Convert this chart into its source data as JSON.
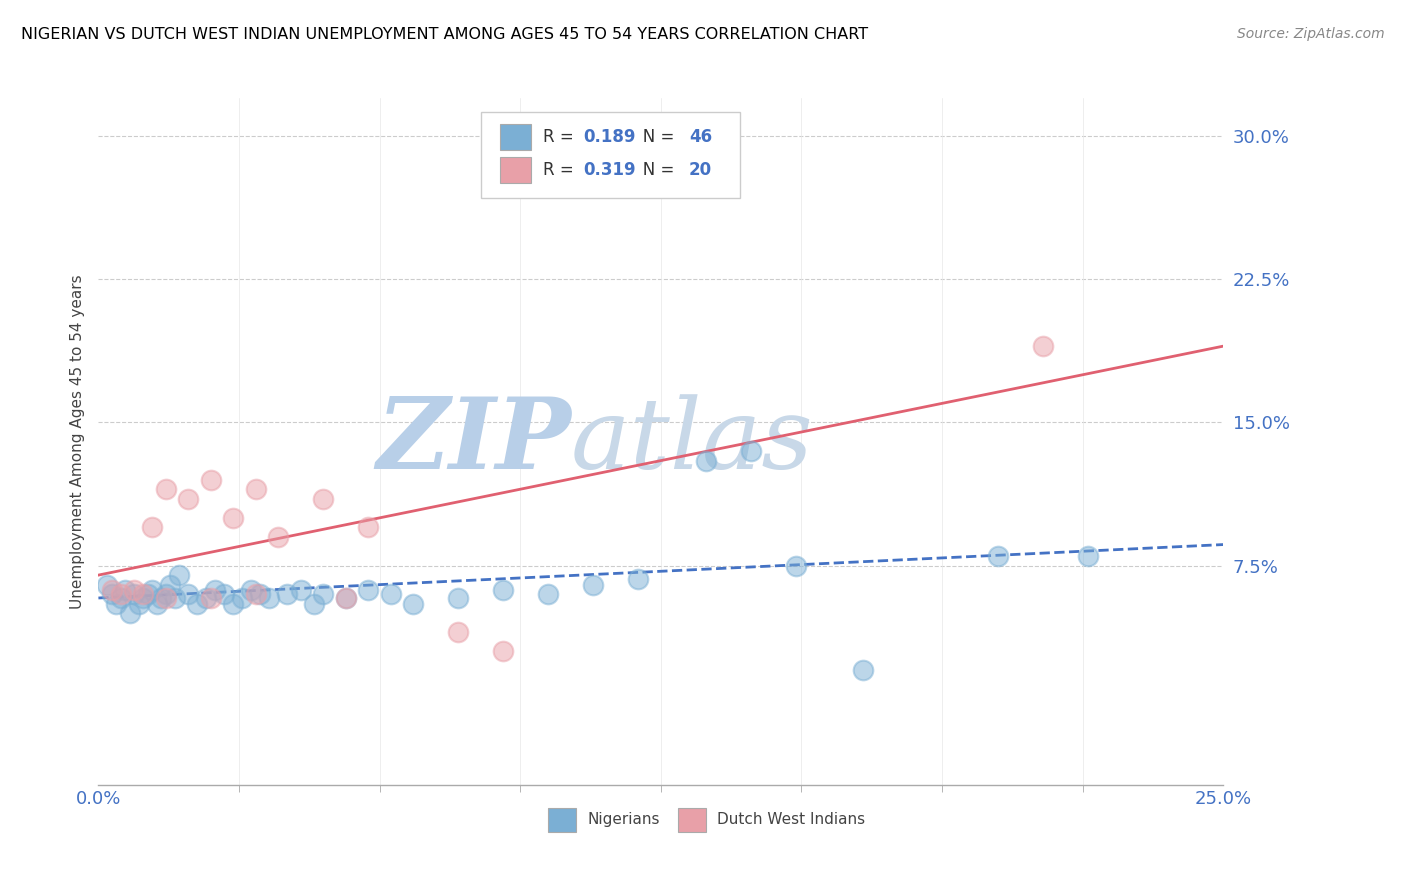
{
  "title": "NIGERIAN VS DUTCH WEST INDIAN UNEMPLOYMENT AMONG AGES 45 TO 54 YEARS CORRELATION CHART",
  "source": "Source: ZipAtlas.com",
  "ylabel": "Unemployment Among Ages 45 to 54 years",
  "xlim": [
    0.0,
    0.25
  ],
  "ylim": [
    -0.04,
    0.32
  ],
  "xticks": [
    0.0,
    0.25
  ],
  "xticklabels": [
    "0.0%",
    "25.0%"
  ],
  "yticks": [
    0.075,
    0.15,
    0.225,
    0.3
  ],
  "yticklabels": [
    "7.5%",
    "15.0%",
    "22.5%",
    "30.0%"
  ],
  "grid_color": "#cccccc",
  "nigerian_color": "#7bafd4",
  "dutch_color": "#e8a0a8",
  "nigerian_R": 0.189,
  "nigerian_N": 46,
  "dutch_R": 0.319,
  "dutch_N": 20,
  "nigerian_scatter": [
    [
      0.002,
      0.065
    ],
    [
      0.003,
      0.06
    ],
    [
      0.004,
      0.055
    ],
    [
      0.005,
      0.058
    ],
    [
      0.006,
      0.062
    ],
    [
      0.007,
      0.05
    ],
    [
      0.008,
      0.06
    ],
    [
      0.009,
      0.055
    ],
    [
      0.01,
      0.058
    ],
    [
      0.011,
      0.06
    ],
    [
      0.012,
      0.062
    ],
    [
      0.013,
      0.055
    ],
    [
      0.014,
      0.058
    ],
    [
      0.015,
      0.06
    ],
    [
      0.016,
      0.065
    ],
    [
      0.017,
      0.058
    ],
    [
      0.018,
      0.07
    ],
    [
      0.02,
      0.06
    ],
    [
      0.022,
      0.055
    ],
    [
      0.024,
      0.058
    ],
    [
      0.026,
      0.062
    ],
    [
      0.028,
      0.06
    ],
    [
      0.03,
      0.055
    ],
    [
      0.032,
      0.058
    ],
    [
      0.034,
      0.062
    ],
    [
      0.036,
      0.06
    ],
    [
      0.038,
      0.058
    ],
    [
      0.042,
      0.06
    ],
    [
      0.045,
      0.062
    ],
    [
      0.048,
      0.055
    ],
    [
      0.05,
      0.06
    ],
    [
      0.055,
      0.058
    ],
    [
      0.06,
      0.062
    ],
    [
      0.065,
      0.06
    ],
    [
      0.07,
      0.055
    ],
    [
      0.08,
      0.058
    ],
    [
      0.09,
      0.062
    ],
    [
      0.1,
      0.06
    ],
    [
      0.11,
      0.065
    ],
    [
      0.12,
      0.068
    ],
    [
      0.135,
      0.13
    ],
    [
      0.145,
      0.135
    ],
    [
      0.155,
      0.075
    ],
    [
      0.17,
      0.02
    ],
    [
      0.2,
      0.08
    ],
    [
      0.22,
      0.08
    ]
  ],
  "dutch_scatter": [
    [
      0.003,
      0.062
    ],
    [
      0.005,
      0.06
    ],
    [
      0.008,
      0.062
    ],
    [
      0.01,
      0.06
    ],
    [
      0.012,
      0.095
    ],
    [
      0.015,
      0.115
    ],
    [
      0.02,
      0.11
    ],
    [
      0.025,
      0.12
    ],
    [
      0.03,
      0.1
    ],
    [
      0.035,
      0.115
    ],
    [
      0.04,
      0.09
    ],
    [
      0.05,
      0.11
    ],
    [
      0.06,
      0.095
    ],
    [
      0.015,
      0.058
    ],
    [
      0.025,
      0.058
    ],
    [
      0.035,
      0.06
    ],
    [
      0.055,
      0.058
    ],
    [
      0.08,
      0.04
    ],
    [
      0.09,
      0.03
    ],
    [
      0.21,
      0.19
    ]
  ],
  "watermark_zip": "ZIP",
  "watermark_atlas": "atlas",
  "watermark_color_zip": "#b8cfe8",
  "watermark_color_atlas": "#c8d8e8",
  "background_color": "#ffffff",
  "nigerian_line_color": "#4472c4",
  "dutch_line_color": "#e06070",
  "tick_color": "#4472c4",
  "legend_text_color_black": "#333333",
  "legend_value_color_blue": "#4472c4",
  "legend_value_color_dutch": "#e06070"
}
